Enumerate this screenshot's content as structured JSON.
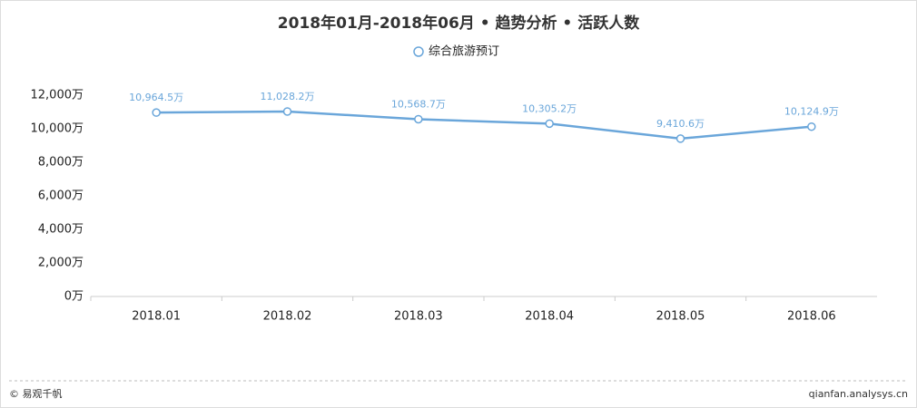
{
  "chart_data": {
    "type": "line",
    "title": "2018年01月-2018年06月 • 趋势分析 • 活跃人数",
    "categories": [
      "2018.01",
      "2018.02",
      "2018.03",
      "2018.04",
      "2018.05",
      "2018.06"
    ],
    "series": [
      {
        "name": "综合旅游预订",
        "color": "#6aa6da",
        "values": [
          10964.5,
          11028.2,
          10568.7,
          10305.2,
          9410.6,
          10124.9
        ],
        "value_labels": [
          "10,964.5万",
          "11,028.2万",
          "10,568.7万",
          "10,305.2万",
          "9,410.6万",
          "10,124.9万"
        ]
      }
    ],
    "ylim": [
      0,
      12000
    ],
    "yticks": [
      {
        "value": 0,
        "label": "0万"
      },
      {
        "value": 2000,
        "label": "2,000万"
      },
      {
        "value": 4000,
        "label": "4,000万"
      },
      {
        "value": 6000,
        "label": "6,000万"
      },
      {
        "value": 8000,
        "label": "8,000万"
      },
      {
        "value": 10000,
        "label": "10,000万"
      },
      {
        "value": 12000,
        "label": "12,000万"
      }
    ],
    "grid": false
  },
  "footer": {
    "left": "© 易观千帆",
    "right": "qianfan.analysys.cn"
  }
}
